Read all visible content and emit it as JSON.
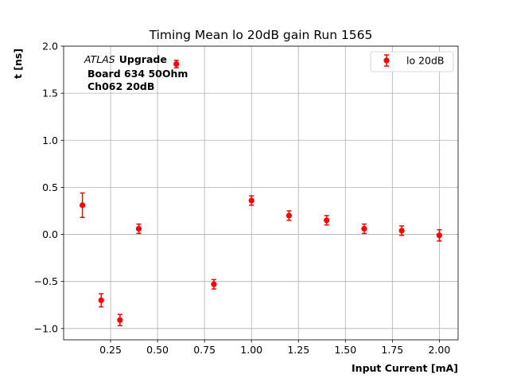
{
  "chart_data": {
    "type": "scatter",
    "title": "Timing Mean lo 20dB gain Run 1565",
    "xlabel": "Input Current [mA]",
    "ylabel": "t [ns]",
    "xlim": [
      0.0,
      2.1
    ],
    "ylim": [
      -1.12,
      2.0
    ],
    "grid": true,
    "xticks": [
      0.25,
      0.5,
      0.75,
      1.0,
      1.25,
      1.5,
      1.75,
      2.0
    ],
    "xtick_labels": [
      "0.25",
      "0.50",
      "0.75",
      "1.00",
      "1.25",
      "1.50",
      "1.75",
      "2.00"
    ],
    "yticks": [
      -1.0,
      -0.5,
      0.0,
      0.5,
      1.0,
      1.5,
      2.0
    ],
    "ytick_labels": [
      "−1.0",
      "−0.5",
      "0.0",
      "0.5",
      "1.0",
      "1.5",
      "2.0"
    ],
    "legend_position": "top-right",
    "annotation": {
      "atlas": "ATLAS",
      "upgrade": "Upgrade",
      "line2": "Board 634 50Ohm",
      "line3": "Ch062 20dB"
    },
    "series": [
      {
        "name": "lo 20dB",
        "color": "#ff0000",
        "x": [
          0.1,
          0.2,
          0.3,
          0.4,
          0.6,
          0.8,
          1.0,
          1.2,
          1.4,
          1.6,
          1.8,
          2.0
        ],
        "y": [
          0.31,
          -0.7,
          -0.91,
          0.06,
          1.81,
          -0.53,
          0.36,
          0.2,
          0.15,
          0.06,
          0.04,
          -0.01
        ],
        "yerr": [
          0.13,
          0.07,
          0.06,
          0.05,
          0.04,
          0.05,
          0.05,
          0.05,
          0.05,
          0.05,
          0.05,
          0.06
        ]
      }
    ]
  }
}
